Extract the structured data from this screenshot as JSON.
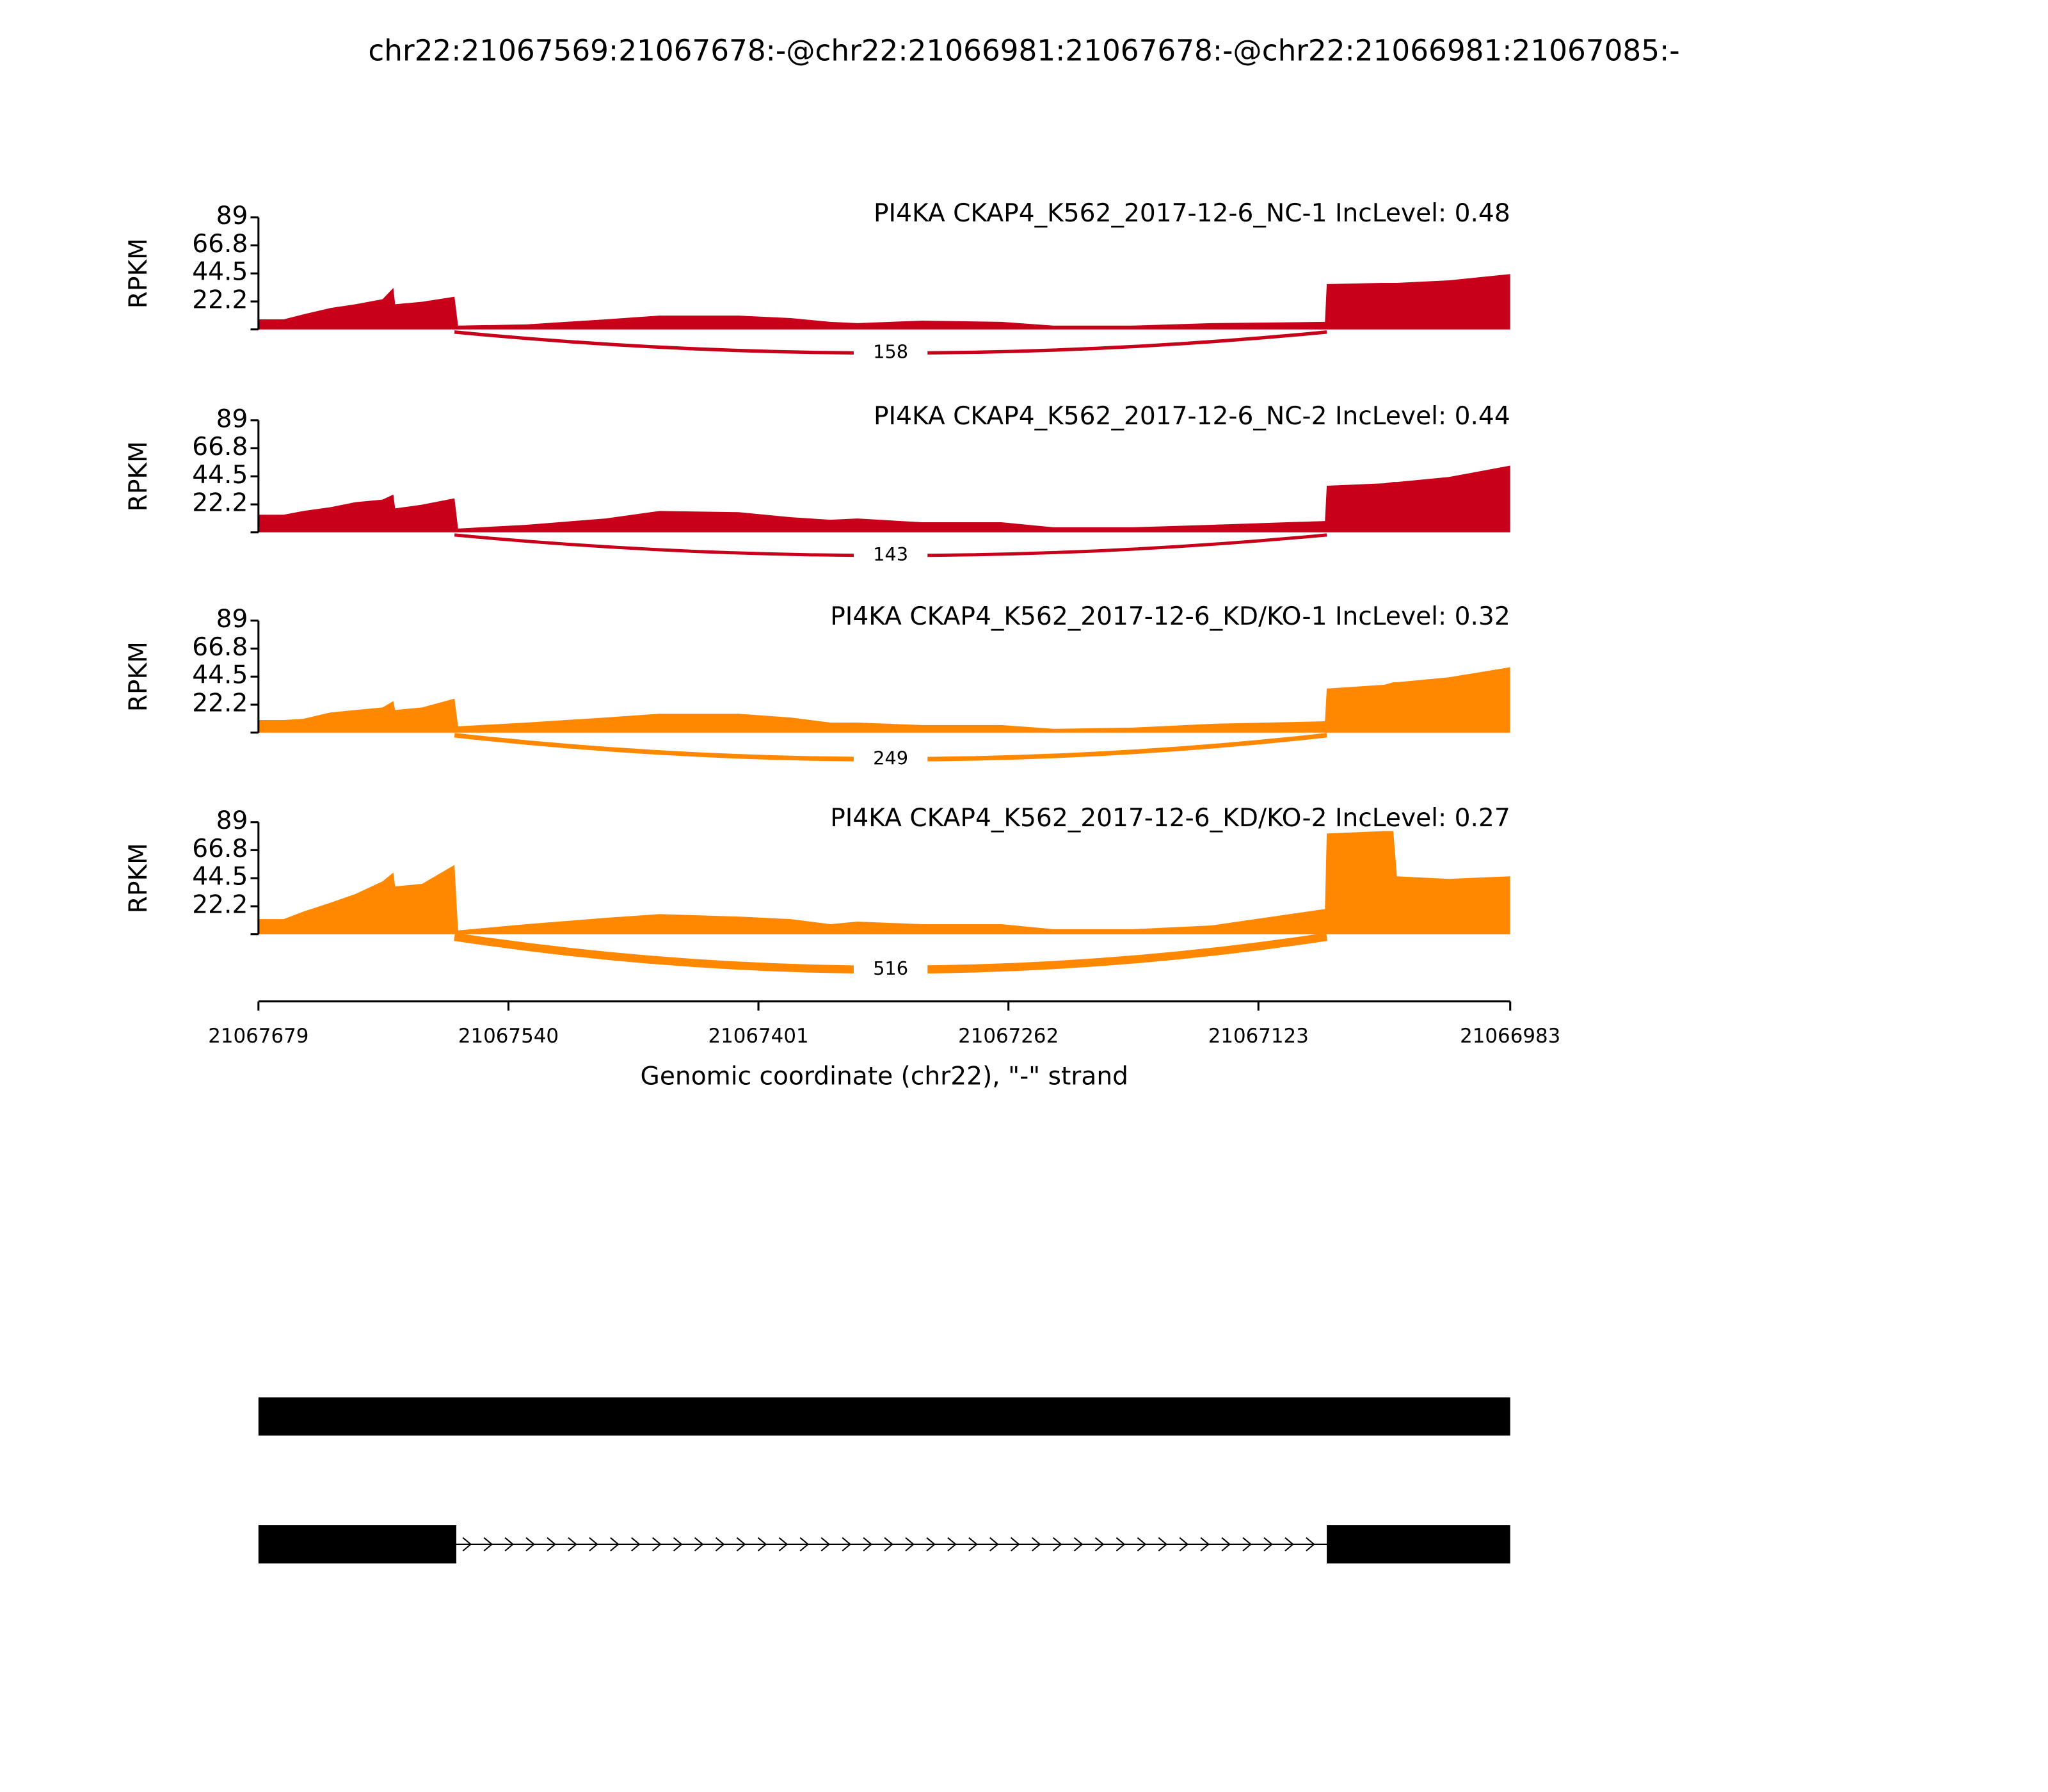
{
  "title": "chr22:21067569:21067678:-@chr22:21066981:21067678:-@chr22:21066981:21067085:-",
  "chart_data": [
    {
      "type": "area",
      "title": "PI4KA CKAP4_K562_2017-12-6_NC-1 IncLevel: 0.48",
      "ylabel": "RPKM",
      "color": "#c8001a",
      "x": [
        21067679,
        21067665,
        21067654,
        21067639,
        21067625,
        21067610,
        21067604,
        21067603,
        21067588,
        21067570,
        21067568,
        21067530,
        21067486,
        21067456,
        21067412,
        21067383,
        21067361,
        21067346,
        21067310,
        21067266,
        21067237,
        21067193,
        21067149,
        21067086,
        21067085,
        21067053,
        21067048,
        21067046,
        21067017,
        21066983
      ],
      "values": [
        8,
        8,
        12,
        17,
        20,
        24,
        33,
        20,
        22,
        26,
        3,
        4,
        8,
        11,
        11,
        9,
        6,
        5,
        7,
        6,
        3,
        3,
        5,
        6,
        36,
        37,
        37,
        37,
        39,
        44
      ],
      "junction": {
        "start": 21067570,
        "end": 21067085,
        "count": 158
      },
      "xlim": [
        21067679,
        21066983
      ],
      "ylim": [
        0,
        89
      ],
      "yticks": [
        22.2,
        44.5,
        66.8,
        89
      ]
    },
    {
      "type": "area",
      "title": "PI4KA CKAP4_K562_2017-12-6_NC-2 IncLevel: 0.44",
      "ylabel": "RPKM",
      "color": "#c8001a",
      "x": [
        21067679,
        21067665,
        21067654,
        21067639,
        21067625,
        21067610,
        21067604,
        21067603,
        21067588,
        21067570,
        21067568,
        21067530,
        21067486,
        21067456,
        21067412,
        21067383,
        21067361,
        21067346,
        21067310,
        21067266,
        21067237,
        21067193,
        21067149,
        21067086,
        21067085,
        21067053,
        21067048,
        21067046,
        21067017,
        21066983
      ],
      "values": [
        14,
        14,
        17,
        20,
        24,
        26,
        30,
        19,
        22,
        27,
        3,
        6,
        11,
        17,
        16,
        12,
        10,
        11,
        8,
        8,
        4,
        4,
        6,
        9,
        37,
        39,
        40,
        40,
        44,
        53
      ],
      "junction": {
        "start": 21067570,
        "end": 21067085,
        "count": 143
      },
      "xlim": [
        21067679,
        21066983
      ],
      "ylim": [
        0,
        89
      ],
      "yticks": [
        22.2,
        44.5,
        66.8,
        89
      ]
    },
    {
      "type": "area",
      "title": "PI4KA CKAP4_K562_2017-12-6_KD/KO-1 IncLevel: 0.32",
      "ylabel": "RPKM",
      "color": "#ff8800",
      "x": [
        21067679,
        21067665,
        21067654,
        21067639,
        21067625,
        21067610,
        21067604,
        21067603,
        21067588,
        21067570,
        21067568,
        21067530,
        21067486,
        21067456,
        21067412,
        21067383,
        21067361,
        21067346,
        21067310,
        21067266,
        21067237,
        21067193,
        21067149,
        21067086,
        21067085,
        21067053,
        21067048,
        21067046,
        21067017,
        21066983
      ],
      "values": [
        10,
        10,
        11,
        16,
        18,
        20,
        25,
        18,
        20,
        27,
        5,
        8,
        12,
        15,
        15,
        12,
        8,
        8,
        6,
        6,
        3,
        4,
        7,
        9,
        35,
        38,
        40,
        40,
        44,
        52
      ],
      "junction": {
        "start": 21067570,
        "end": 21067085,
        "count": 249
      },
      "xlim": [
        21067679,
        21066983
      ],
      "ylim": [
        0,
        89
      ],
      "yticks": [
        22.2,
        44.5,
        66.8,
        89
      ]
    },
    {
      "type": "area",
      "title": "PI4KA CKAP4_K562_2017-12-6_KD/KO-2 IncLevel: 0.27",
      "ylabel": "RPKM",
      "color": "#ff8800",
      "x": [
        21067679,
        21067665,
        21067654,
        21067639,
        21067625,
        21067610,
        21067604,
        21067603,
        21067588,
        21067570,
        21067568,
        21067530,
        21067486,
        21067456,
        21067412,
        21067383,
        21067361,
        21067346,
        21067310,
        21067266,
        21067237,
        21067193,
        21067149,
        21067086,
        21067085,
        21067053,
        21067048,
        21067046,
        21067017,
        21066983
      ],
      "values": [
        12,
        12,
        18,
        25,
        32,
        42,
        49,
        38,
        40,
        55,
        3,
        8,
        13,
        16,
        14,
        12,
        8,
        10,
        8,
        8,
        4,
        4,
        7,
        20,
        80,
        82,
        82,
        46,
        44,
        46
      ],
      "junction": {
        "start": 21067570,
        "end": 21067085,
        "count": 516
      },
      "xlim": [
        21067679,
        21066983
      ],
      "ylim": [
        0,
        89
      ],
      "yticks": [
        22.2,
        44.5,
        66.8,
        89
      ],
      "xticks": [
        21067679,
        21067540,
        21067401,
        21067262,
        21067123,
        21066983
      ],
      "xlabel": "Genomic coordinate (chr22), \"-\" strand"
    }
  ],
  "gene_model": {
    "xlim": [
      21067679,
      21066983
    ],
    "transcripts": [
      {
        "exons": [
          [
            21067679,
            21066983
          ]
        ]
      },
      {
        "exons": [
          [
            21067679,
            21067569
          ],
          [
            21067085,
            21066983
          ]
        ]
      }
    ]
  }
}
